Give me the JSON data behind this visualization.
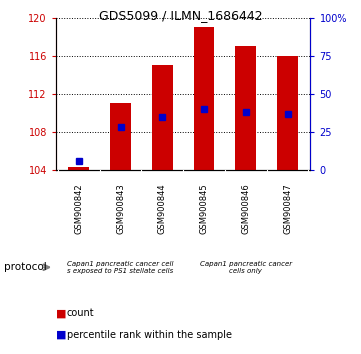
{
  "title": "GDS5099 / ILMN_1686442",
  "samples": [
    "GSM900842",
    "GSM900843",
    "GSM900844",
    "GSM900845",
    "GSM900846",
    "GSM900847"
  ],
  "count_values": [
    104.3,
    111.0,
    115.0,
    119.0,
    117.0,
    116.0
  ],
  "percentile_values": [
    6,
    28,
    35,
    40,
    38,
    37
  ],
  "ylim_left": [
    104,
    120
  ],
  "ylim_right": [
    0,
    100
  ],
  "yticks_left": [
    104,
    108,
    112,
    116,
    120
  ],
  "yticks_right": [
    0,
    25,
    50,
    75,
    100
  ],
  "bar_color": "#CC0000",
  "dot_color": "#0000CC",
  "base_value": 104,
  "group1_label": "Capan1 pancreatic cancer cell\ns exposed to PS1 stellate cells",
  "group2_label": "Capan1 pancreatic cancer\ncells only",
  "group_color": "#90EE90",
  "protocol_label": "protocol",
  "background_color": "#FFFFFF",
  "plot_bg": "#FFFFFF",
  "tick_color_left": "#CC0000",
  "tick_color_right": "#0000CC",
  "bar_width": 0.5,
  "gray_color": "#C8C8C8"
}
